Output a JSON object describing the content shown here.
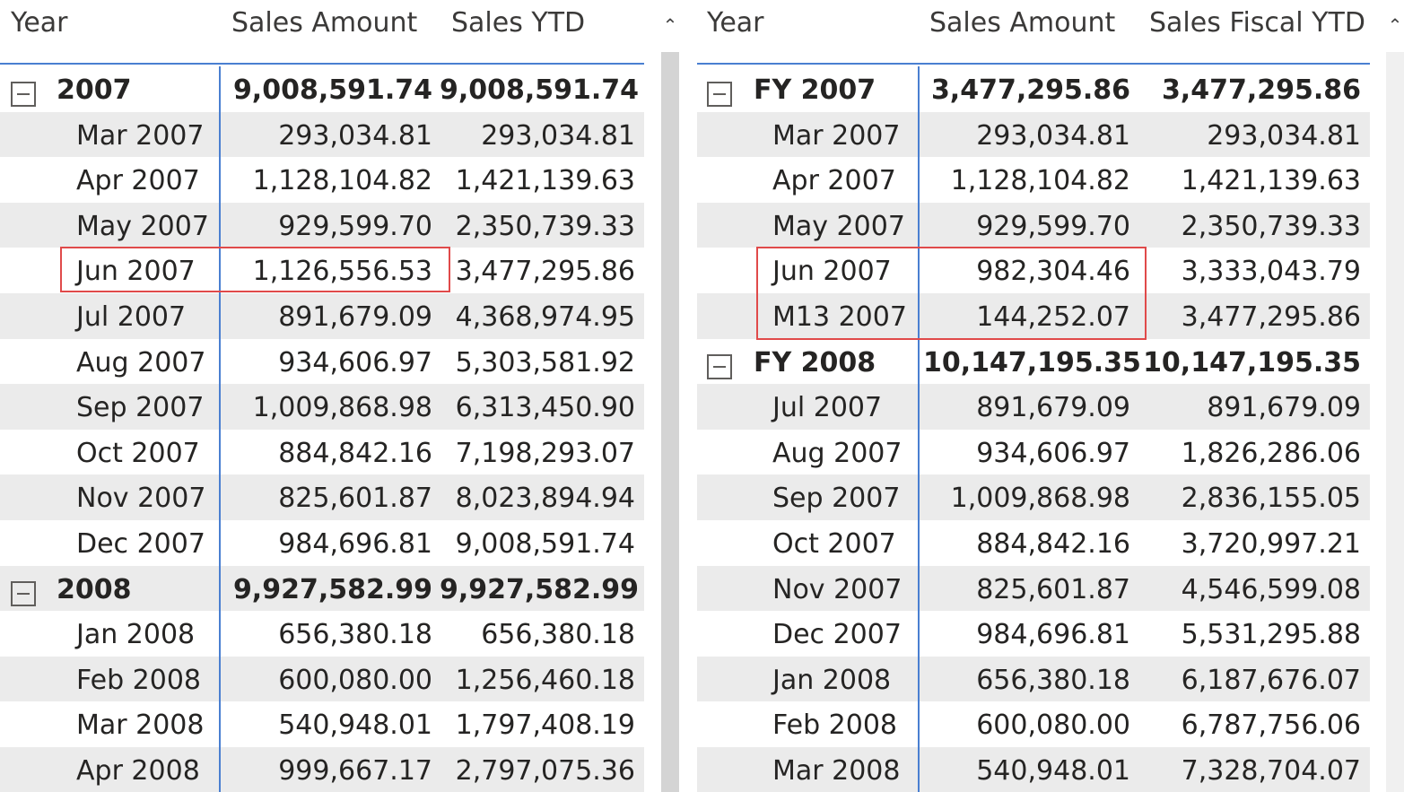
{
  "left": {
    "headers": {
      "year": "Year",
      "amount": "Sales Amount",
      "ytd": "Sales YTD"
    },
    "rows": [
      {
        "type": "group",
        "label": "2007",
        "amount": "9,008,591.74",
        "ytd": "9,008,591.74"
      },
      {
        "type": "item",
        "label": "Mar 2007",
        "amount": "293,034.81",
        "ytd": "293,034.81"
      },
      {
        "type": "item",
        "label": "Apr 2007",
        "amount": "1,128,104.82",
        "ytd": "1,421,139.63"
      },
      {
        "type": "item",
        "label": "May 2007",
        "amount": "929,599.70",
        "ytd": "2,350,739.33"
      },
      {
        "type": "item",
        "label": "Jun 2007",
        "amount": "1,126,556.53",
        "ytd": "3,477,295.86",
        "highlight": true
      },
      {
        "type": "item",
        "label": "Jul 2007",
        "amount": "891,679.09",
        "ytd": "4,368,974.95"
      },
      {
        "type": "item",
        "label": "Aug 2007",
        "amount": "934,606.97",
        "ytd": "5,303,581.92"
      },
      {
        "type": "item",
        "label": "Sep 2007",
        "amount": "1,009,868.98",
        "ytd": "6,313,450.90"
      },
      {
        "type": "item",
        "label": "Oct 2007",
        "amount": "884,842.16",
        "ytd": "7,198,293.07"
      },
      {
        "type": "item",
        "label": "Nov 2007",
        "amount": "825,601.87",
        "ytd": "8,023,894.94"
      },
      {
        "type": "item",
        "label": "Dec 2007",
        "amount": "984,696.81",
        "ytd": "9,008,591.74"
      },
      {
        "type": "group",
        "label": "2008",
        "amount": "9,927,582.99",
        "ytd": "9,927,582.99"
      },
      {
        "type": "item",
        "label": "Jan 2008",
        "amount": "656,380.18",
        "ytd": "656,380.18"
      },
      {
        "type": "item",
        "label": "Feb 2008",
        "amount": "600,080.00",
        "ytd": "1,256,460.18"
      },
      {
        "type": "item",
        "label": "Mar 2008",
        "amount": "540,948.01",
        "ytd": "1,797,408.19"
      },
      {
        "type": "item",
        "label": "Apr 2008",
        "amount": "999,667.17",
        "ytd": "2,797,075.36"
      }
    ]
  },
  "right": {
    "headers": {
      "year": "Year",
      "amount": "Sales Amount",
      "ytd": "Sales Fiscal YTD"
    },
    "rows": [
      {
        "type": "group",
        "label": "FY 2007",
        "amount": "3,477,295.86",
        "ytd": "3,477,295.86"
      },
      {
        "type": "item",
        "label": "Mar 2007",
        "amount": "293,034.81",
        "ytd": "293,034.81"
      },
      {
        "type": "item",
        "label": "Apr 2007",
        "amount": "1,128,104.82",
        "ytd": "1,421,139.63"
      },
      {
        "type": "item",
        "label": "May 2007",
        "amount": "929,599.70",
        "ytd": "2,350,739.33"
      },
      {
        "type": "item",
        "label": "Jun 2007",
        "amount": "982,304.46",
        "ytd": "3,333,043.79",
        "highlight": true
      },
      {
        "type": "item",
        "label": "M13 2007",
        "amount": "144,252.07",
        "ytd": "3,477,295.86",
        "highlight": true
      },
      {
        "type": "group",
        "label": "FY 2008",
        "amount": "10,147,195.35",
        "ytd": "10,147,195.35"
      },
      {
        "type": "item",
        "label": "Jul 2007",
        "amount": "891,679.09",
        "ytd": "891,679.09"
      },
      {
        "type": "item",
        "label": "Aug 2007",
        "amount": "934,606.97",
        "ytd": "1,826,286.06"
      },
      {
        "type": "item",
        "label": "Sep 2007",
        "amount": "1,009,868.98",
        "ytd": "2,836,155.05"
      },
      {
        "type": "item",
        "label": "Oct 2007",
        "amount": "884,842.16",
        "ytd": "3,720,997.21"
      },
      {
        "type": "item",
        "label": "Nov 2007",
        "amount": "825,601.87",
        "ytd": "4,546,599.08"
      },
      {
        "type": "item",
        "label": "Dec 2007",
        "amount": "984,696.81",
        "ytd": "5,531,295.88"
      },
      {
        "type": "item",
        "label": "Jan 2008",
        "amount": "656,380.18",
        "ytd": "6,187,676.07"
      },
      {
        "type": "item",
        "label": "Feb 2008",
        "amount": "600,080.00",
        "ytd": "6,787,756.06"
      },
      {
        "type": "item",
        "label": "Mar 2008",
        "amount": "540,948.01",
        "ytd": "7,328,704.07"
      }
    ]
  },
  "icons": {
    "expander": "collapse-minus-icon",
    "scroll_up": "chevron-up-icon"
  },
  "colors": {
    "accent": "#4a7fd1",
    "highlight": "#e04a4a",
    "alt_row": "#ebebeb"
  }
}
